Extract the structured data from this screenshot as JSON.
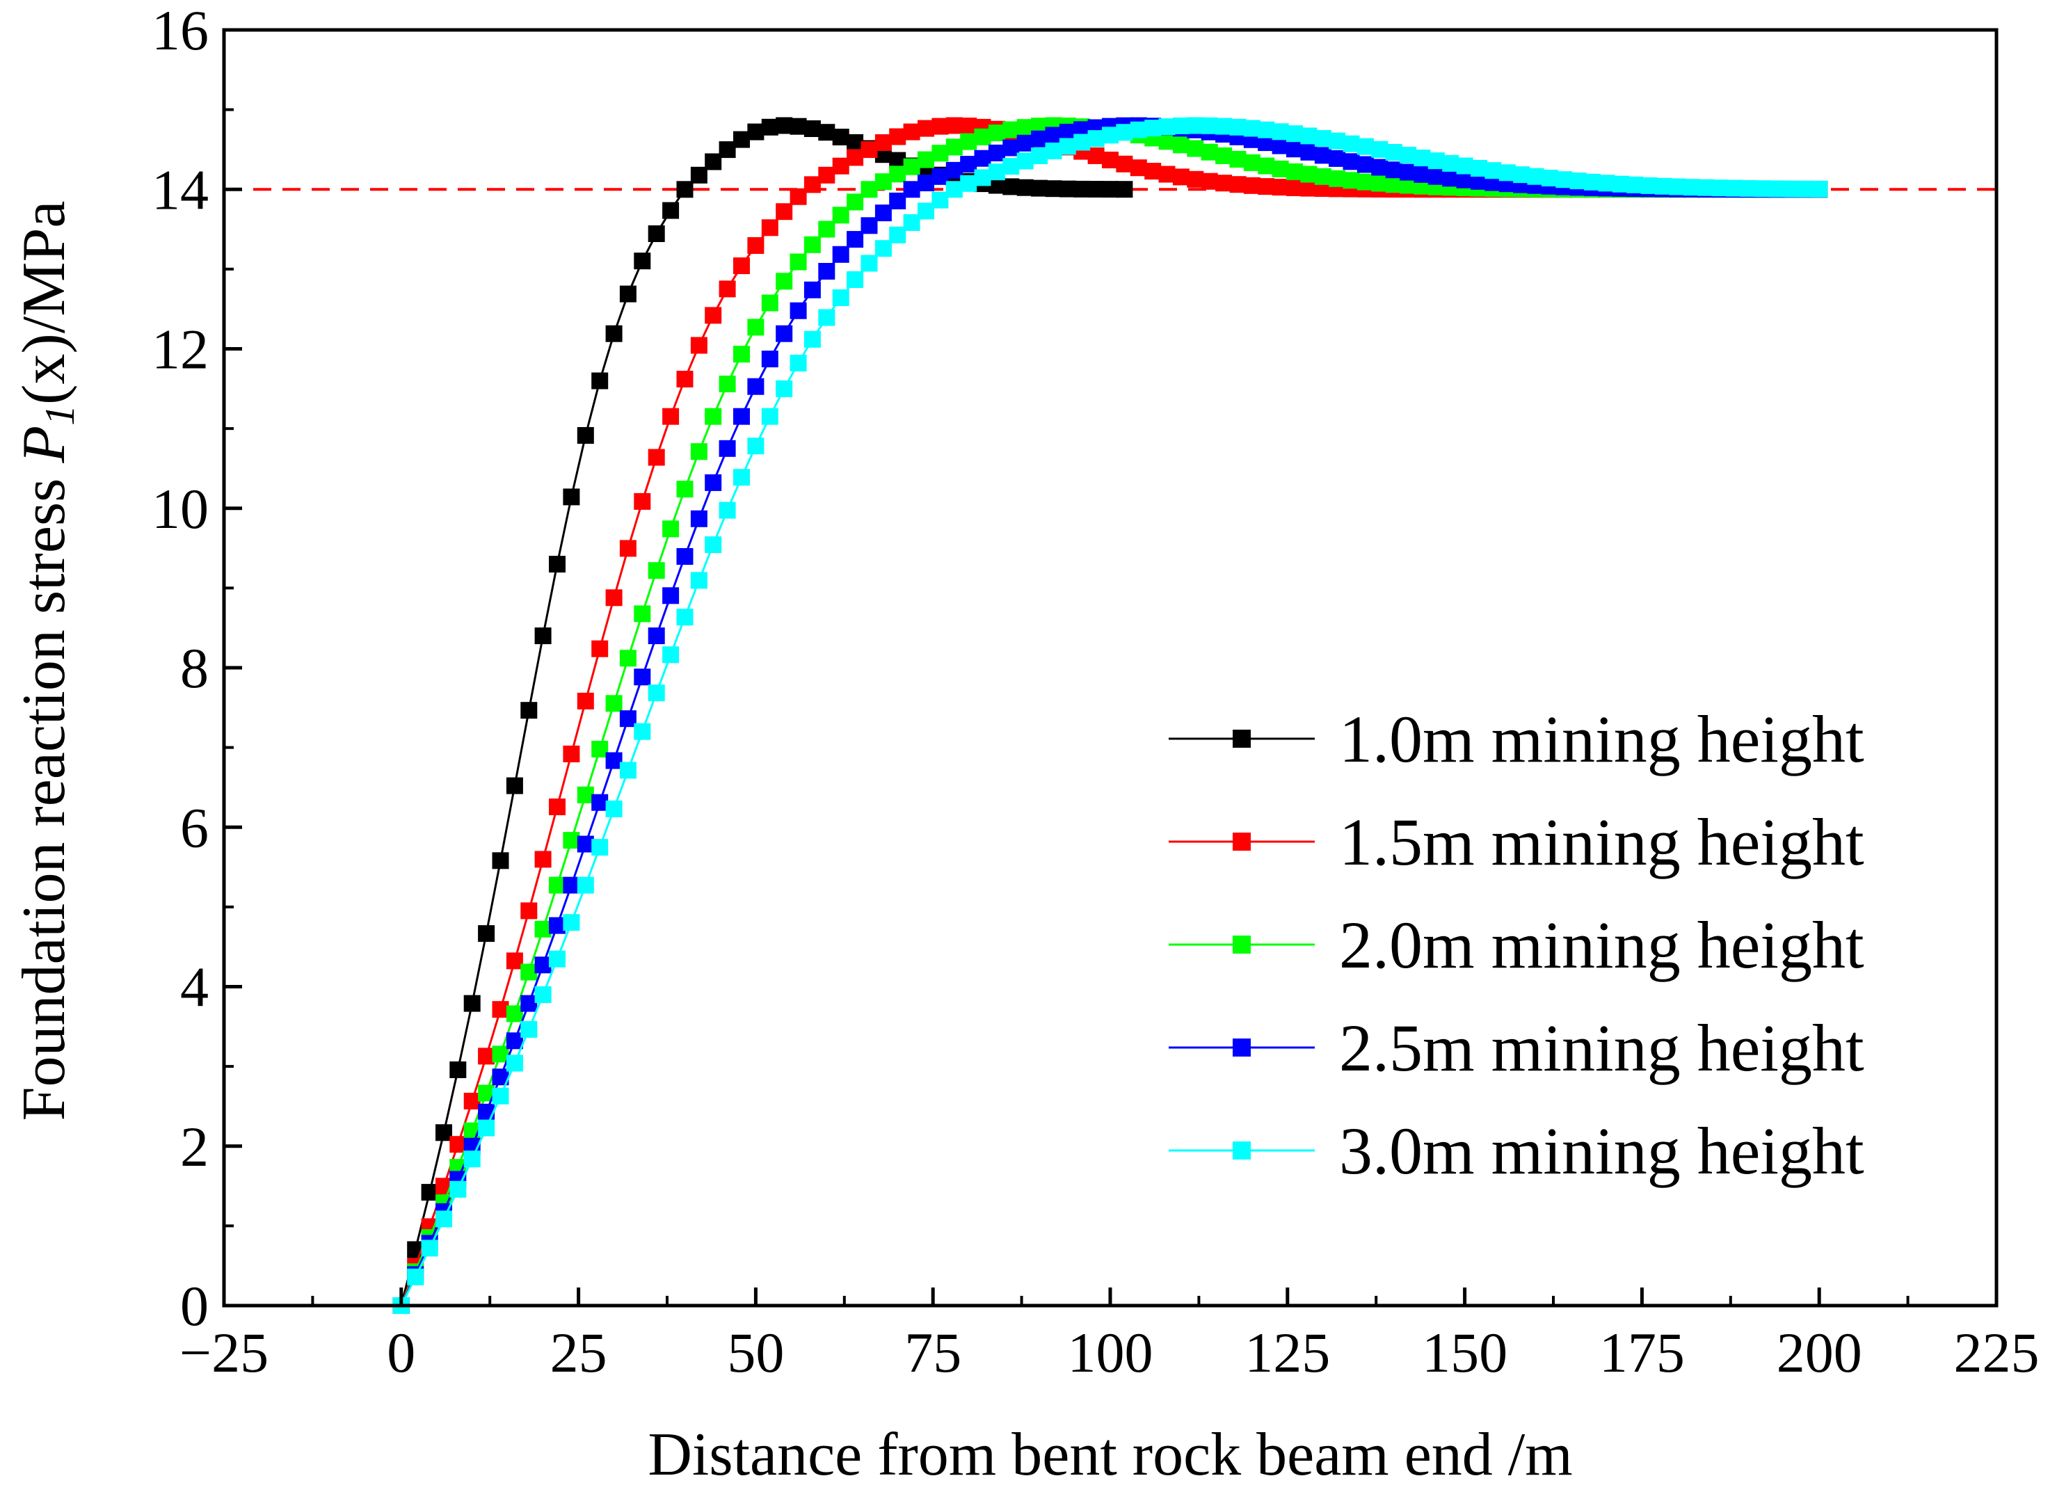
{
  "chart_data": {
    "type": "line",
    "title": "",
    "xlabel": "Distance from bent rock beam end /m",
    "ylabel": {
      "prefix": "Foundation reaction stress ",
      "symbol": "P",
      "subscript": "1",
      "arg": "(x)",
      "suffix": "/MPa"
    },
    "xlim": [
      -25,
      225
    ],
    "ylim": [
      0,
      16
    ],
    "xticks": [
      -25,
      0,
      25,
      50,
      75,
      100,
      125,
      150,
      175,
      200,
      225
    ],
    "xtick_labels": [
      "−25",
      "0",
      "25",
      "50",
      "75",
      "100",
      "125",
      "150",
      "175",
      "200",
      "225"
    ],
    "yticks": [
      0,
      2,
      4,
      6,
      8,
      10,
      12,
      14,
      16
    ],
    "ytick_labels": [
      "0",
      "2",
      "4",
      "6",
      "8",
      "10",
      "12",
      "14",
      "16"
    ],
    "reference_line": {
      "y": 14,
      "color": "#ff0000",
      "style": "dashed"
    },
    "legend_position": "lower-right",
    "series": [
      {
        "name": "1.0m mining height",
        "color": "#000000",
        "ramp_end": 40,
        "peak": 14.8,
        "peak_x": 54,
        "tail_end": 14.0,
        "decay": 18,
        "x_max": 102
      },
      {
        "name": "1.5m mining height",
        "color": "#ff0000",
        "ramp_end": 57,
        "peak": 14.8,
        "peak_x": 78,
        "tail_end": 14.0,
        "decay": 25,
        "x_max": 201
      },
      {
        "name": "2.0m mining height",
        "color": "#00ff00",
        "ramp_end": 66,
        "peak": 14.8,
        "peak_x": 92,
        "tail_end": 14.0,
        "decay": 30,
        "x_max": 201
      },
      {
        "name": "2.5m mining height",
        "color": "#0000ff",
        "ramp_end": 72,
        "peak": 14.8,
        "peak_x": 103,
        "tail_end": 14.0,
        "decay": 34,
        "x_max": 201
      },
      {
        "name": "3.0m mining height",
        "color": "#00ffff",
        "ramp_end": 78,
        "peak": 14.8,
        "peak_x": 112,
        "tail_end": 14.0,
        "decay": 38,
        "x_max": 201
      }
    ]
  }
}
